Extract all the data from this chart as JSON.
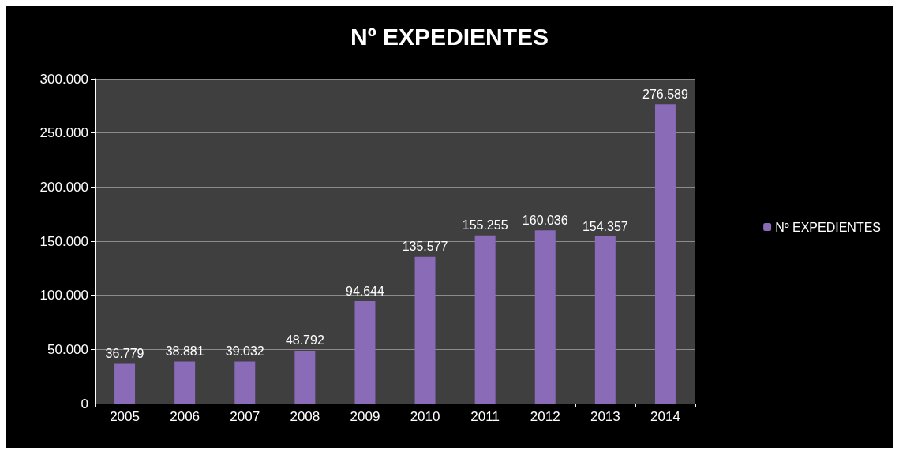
{
  "chart_data": {
    "type": "bar",
    "title": "Nº EXPEDIENTES",
    "categories": [
      "2005",
      "2006",
      "2007",
      "2008",
      "2009",
      "2010",
      "2011",
      "2012",
      "2013",
      "2014"
    ],
    "series": [
      {
        "name": "Nº EXPEDIENTES",
        "color": "#8a6bb8",
        "values": [
          36779,
          38881,
          39032,
          48792,
          94644,
          135577,
          155255,
          160036,
          154357,
          276589
        ],
        "value_labels": [
          "36.779",
          "38.881",
          "39.032",
          "48.792",
          "94.644",
          "135.577",
          "155.255",
          "160.036",
          "154.357",
          "276.589"
        ]
      }
    ],
    "ylim": [
      0,
      300000
    ],
    "yticks": [
      {
        "value": 0,
        "label": "0"
      },
      {
        "value": 50000,
        "label": "50.000"
      },
      {
        "value": 100000,
        "label": "100.000"
      },
      {
        "value": 150000,
        "label": "150.000"
      },
      {
        "value": 200000,
        "label": "200.000"
      },
      {
        "value": 250000,
        "label": "250.000"
      },
      {
        "value": 300000,
        "label": "300.000"
      }
    ],
    "grid": "y",
    "legend": "right"
  }
}
